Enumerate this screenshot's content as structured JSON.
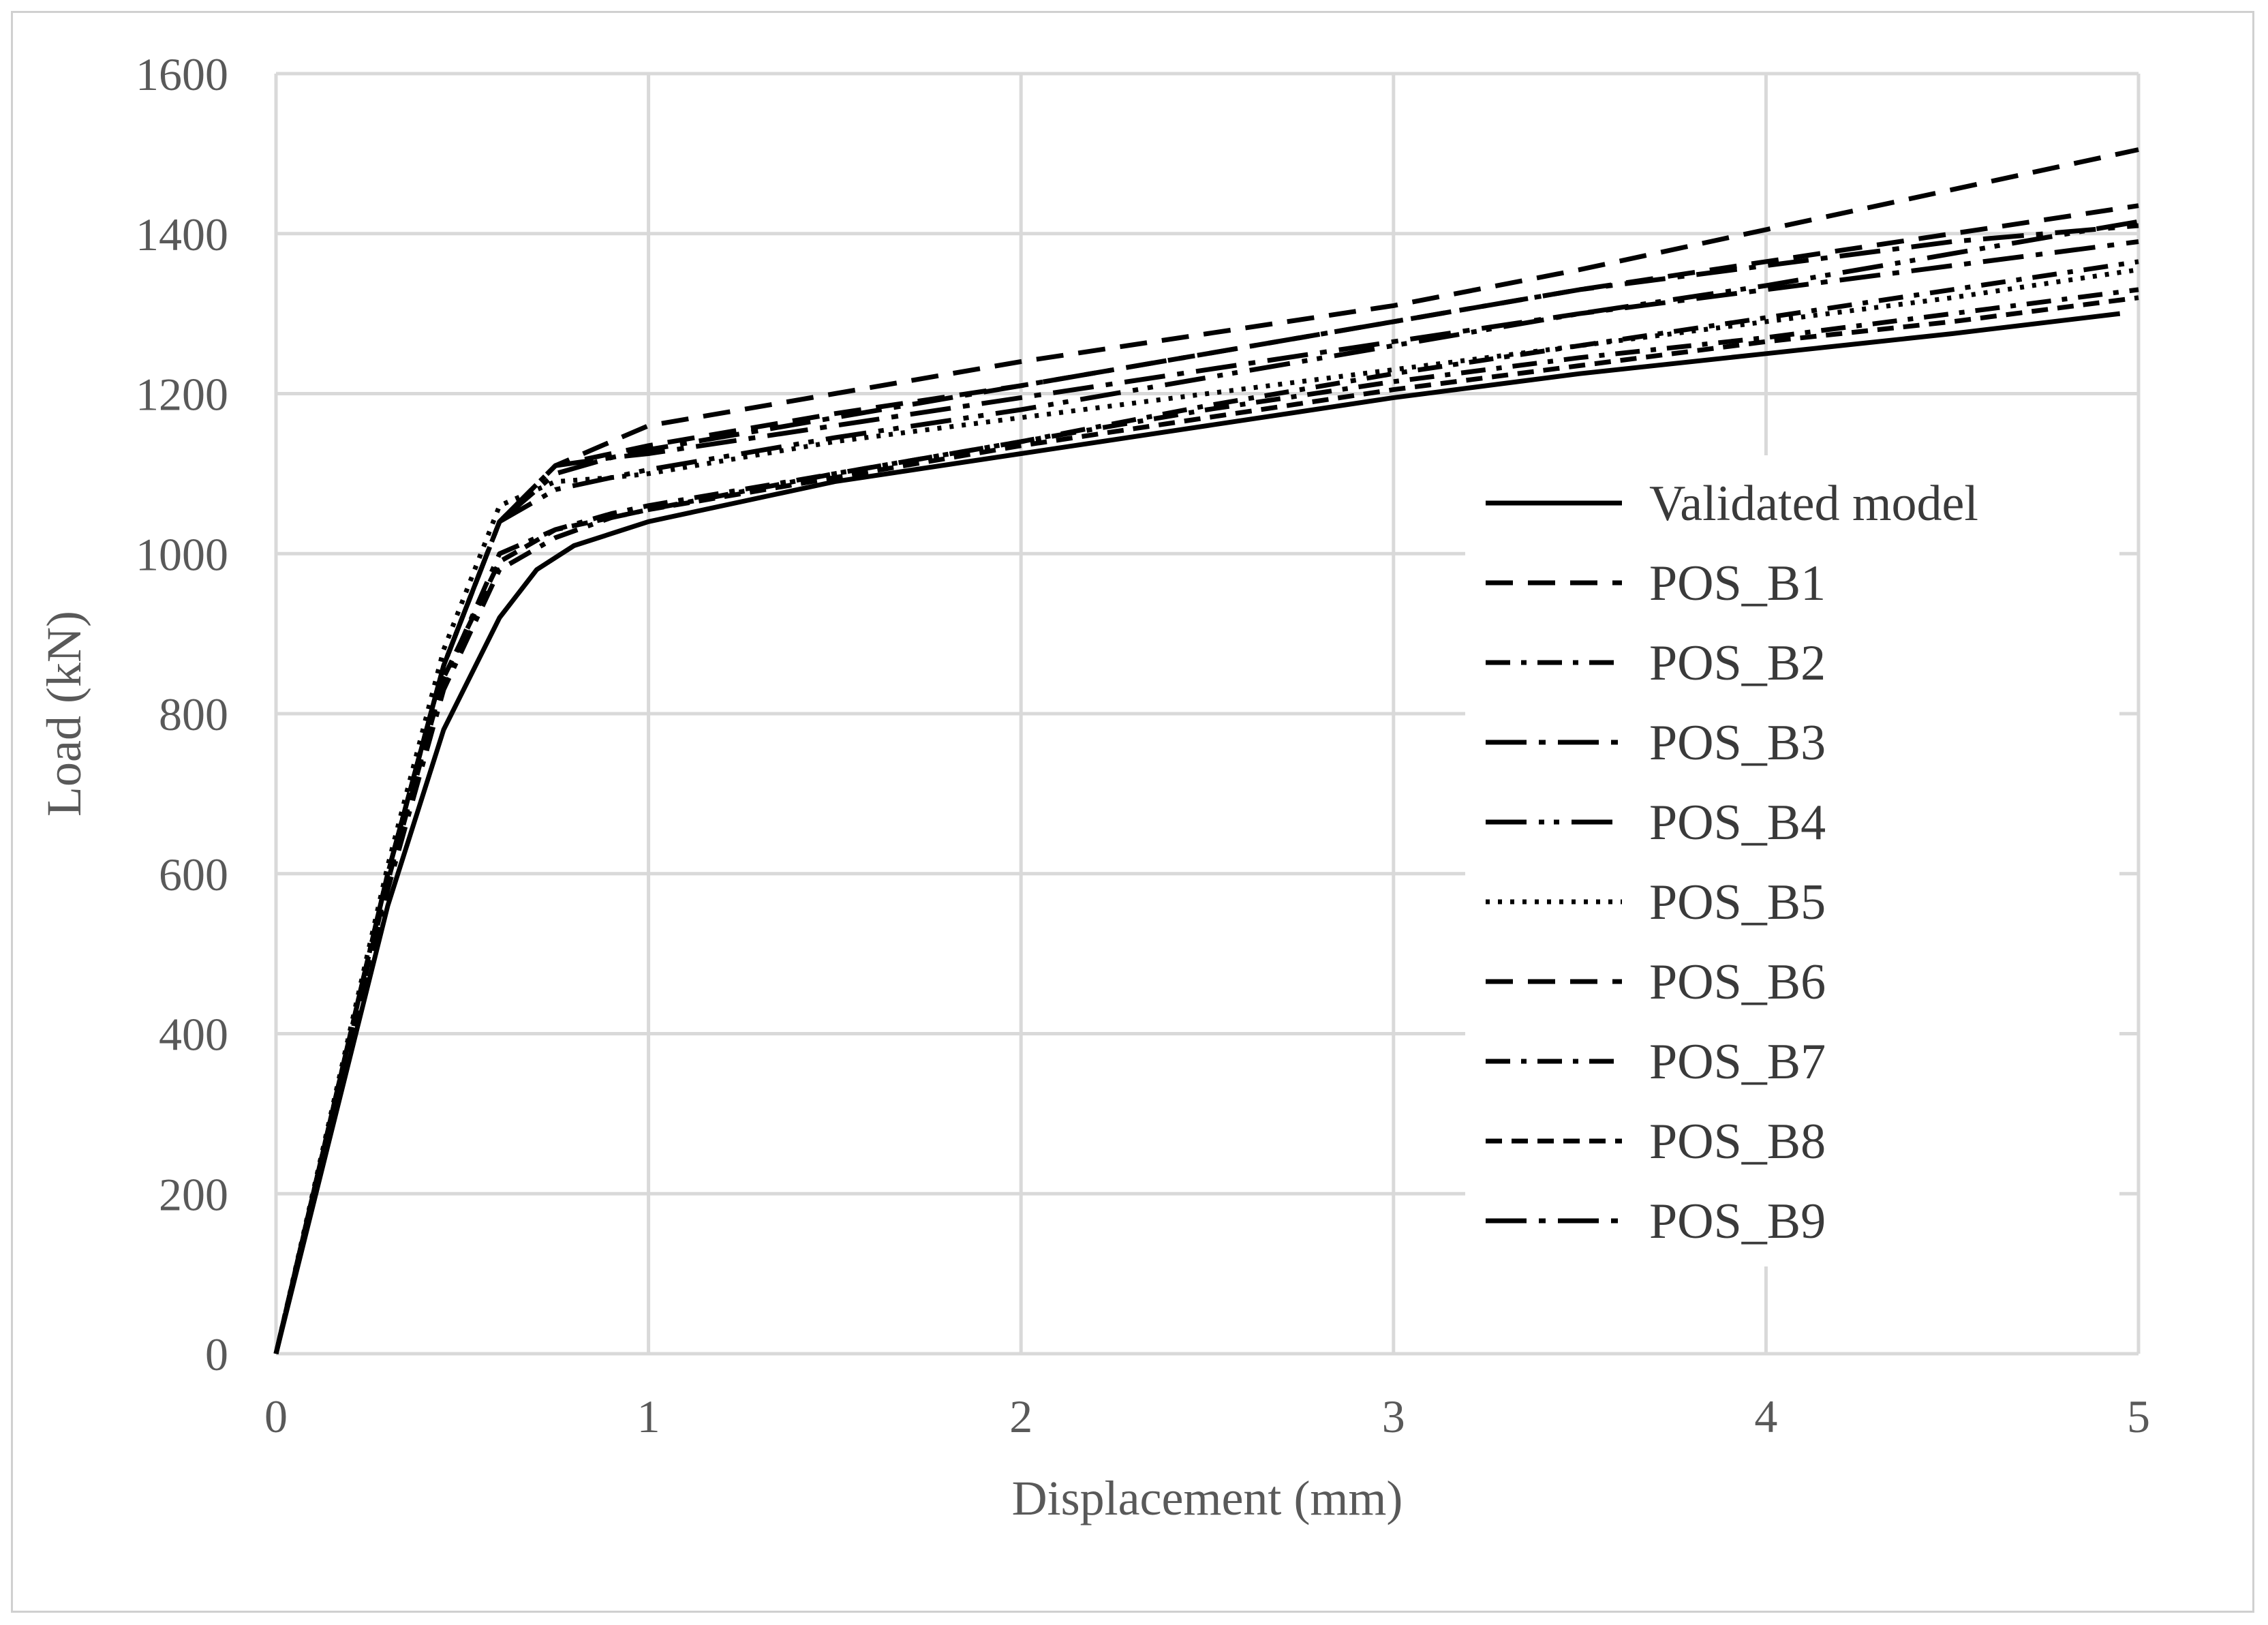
{
  "chart_data": {
    "type": "line",
    "title": "",
    "xlabel": "Displacement (mm)",
    "ylabel": "Load (kN)",
    "xlim": [
      0,
      5
    ],
    "ylim": [
      0,
      1600
    ],
    "x_ticks": [
      "0",
      "1",
      "2",
      "3",
      "4",
      "5"
    ],
    "y_ticks": [
      "0",
      "200",
      "400",
      "600",
      "800",
      "1000",
      "1200",
      "1400",
      "1600"
    ],
    "grid": true,
    "legend_placement": "right",
    "series": [
      {
        "name": "Validated model",
        "dash": "solid",
        "x": [
          0,
          0.15,
          0.3,
          0.45,
          0.6,
          0.7,
          0.8,
          1.0,
          1.5,
          2.0,
          2.5,
          3.0,
          3.5,
          4.0,
          4.5,
          4.95
        ],
        "y": [
          0,
          280,
          560,
          780,
          920,
          980,
          1010,
          1040,
          1090,
          1125,
          1160,
          1195,
          1225,
          1250,
          1275,
          1300
        ]
      },
      {
        "name": "POS_B1",
        "dash": "dash",
        "x": [
          0,
          0.15,
          0.3,
          0.45,
          0.6,
          0.75,
          0.9,
          1.0,
          1.5,
          2.0,
          2.5,
          3.0,
          3.5,
          4.0,
          4.5,
          5.0
        ],
        "y": [
          0,
          300,
          600,
          860,
          1040,
          1110,
          1140,
          1160,
          1200,
          1240,
          1275,
          1310,
          1355,
          1405,
          1455,
          1505
        ]
      },
      {
        "name": "POS_B2",
        "dash": "dashdot",
        "x": [
          0,
          0.15,
          0.3,
          0.45,
          0.6,
          0.75,
          0.9,
          1.0,
          1.5,
          2.0,
          2.5,
          3.0,
          3.5,
          4.0,
          4.5,
          5.0
        ],
        "y": [
          0,
          295,
          590,
          840,
          1000,
          1030,
          1050,
          1060,
          1100,
          1140,
          1180,
          1215,
          1245,
          1270,
          1300,
          1330
        ]
      },
      {
        "name": "POS_B3",
        "dash": "longdashdot",
        "x": [
          0,
          0.15,
          0.3,
          0.45,
          0.6,
          0.75,
          0.9,
          1.0,
          1.5,
          2.0,
          2.5,
          3.0,
          3.5,
          4.0,
          4.5,
          5.0
        ],
        "y": [
          0,
          300,
          600,
          860,
          1040,
          1100,
          1120,
          1130,
          1170,
          1210,
          1250,
          1290,
          1330,
          1360,
          1390,
          1410
        ]
      },
      {
        "name": "POS_B4",
        "dash": "longdashdotdot",
        "x": [
          0,
          0.15,
          0.3,
          0.45,
          0.6,
          0.75,
          0.9,
          1.0,
          1.5,
          2.0,
          2.5,
          3.0,
          3.5,
          4.0,
          4.5,
          5.0
        ],
        "y": [
          0,
          300,
          600,
          860,
          1040,
          1080,
          1095,
          1105,
          1145,
          1180,
          1220,
          1260,
          1300,
          1335,
          1375,
          1415
        ]
      },
      {
        "name": "POS_B5",
        "dash": "dot",
        "x": [
          0,
          0.15,
          0.3,
          0.45,
          0.6,
          0.75,
          0.9,
          1.0,
          1.5,
          2.0,
          2.5,
          3.0,
          3.5,
          4.0,
          4.5,
          5.0
        ],
        "y": [
          0,
          305,
          610,
          880,
          1060,
          1090,
          1095,
          1100,
          1140,
          1170,
          1200,
          1230,
          1260,
          1290,
          1320,
          1355
        ]
      },
      {
        "name": "POS_B6",
        "dash": "dash",
        "x": [
          0,
          0.15,
          0.3,
          0.45,
          0.6,
          0.75,
          0.9,
          1.0,
          1.5,
          2.0,
          2.5,
          3.0,
          3.5,
          4.0,
          4.5,
          5.0
        ],
        "y": [
          0,
          300,
          600,
          860,
          1040,
          1110,
          1125,
          1135,
          1175,
          1210,
          1250,
          1290,
          1330,
          1365,
          1400,
          1435
        ]
      },
      {
        "name": "POS_B7",
        "dash": "dashdot",
        "x": [
          0,
          0.15,
          0.3,
          0.45,
          0.6,
          0.75,
          0.9,
          1.0,
          1.5,
          2.0,
          2.5,
          3.0,
          3.5,
          4.0,
          4.5,
          5.0
        ],
        "y": [
          0,
          290,
          580,
          830,
          980,
          1020,
          1045,
          1055,
          1100,
          1140,
          1185,
          1225,
          1260,
          1295,
          1330,
          1365
        ]
      },
      {
        "name": "POS_B8",
        "dash": "shortdash",
        "x": [
          0,
          0.15,
          0.3,
          0.45,
          0.6,
          0.75,
          0.9,
          1.0,
          1.5,
          2.0,
          2.5,
          3.0,
          3.5,
          4.0,
          4.5,
          5.0
        ],
        "y": [
          0,
          295,
          590,
          845,
          990,
          1030,
          1045,
          1055,
          1095,
          1135,
          1170,
          1205,
          1235,
          1265,
          1290,
          1320
        ]
      },
      {
        "name": "POS_B9",
        "dash": "longdashdot",
        "x": [
          0,
          0.15,
          0.3,
          0.45,
          0.6,
          0.75,
          0.9,
          1.0,
          1.5,
          2.0,
          2.5,
          3.0,
          3.5,
          4.0,
          4.5,
          5.0
        ],
        "y": [
          0,
          300,
          600,
          860,
          1040,
          1110,
          1120,
          1125,
          1160,
          1195,
          1230,
          1265,
          1300,
          1330,
          1360,
          1390
        ]
      }
    ]
  }
}
